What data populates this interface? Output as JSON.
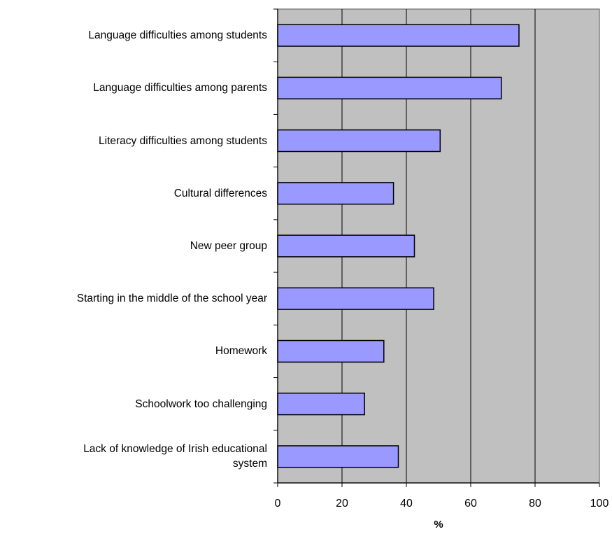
{
  "chart_data": {
    "type": "bar",
    "orientation": "horizontal",
    "categories": [
      "Language difficulties among students",
      "Language difficulties among parents",
      "Literacy difficulties among students ",
      "Cultural differences",
      "New peer group",
      "Starting in the middle of the school year",
      "Homework",
      "Schoolwork too challenging",
      "Lack of knowledge of Irish educational\nsystem"
    ],
    "values": [
      75,
      69.5,
      50.5,
      36,
      42.5,
      48.5,
      33,
      27,
      37.5
    ],
    "title": "",
    "xlabel": "%",
    "ylabel": "",
    "xlim": [
      0,
      100
    ],
    "x_ticks": [
      "0",
      "20",
      "40",
      "60",
      "80",
      "100"
    ],
    "grid": "vertical major gridlines",
    "legend": "none",
    "colors": {
      "bar_fill": "#9999ff",
      "bar_stroke": "#000000",
      "plot_bg": "#c0c0c0"
    }
  }
}
